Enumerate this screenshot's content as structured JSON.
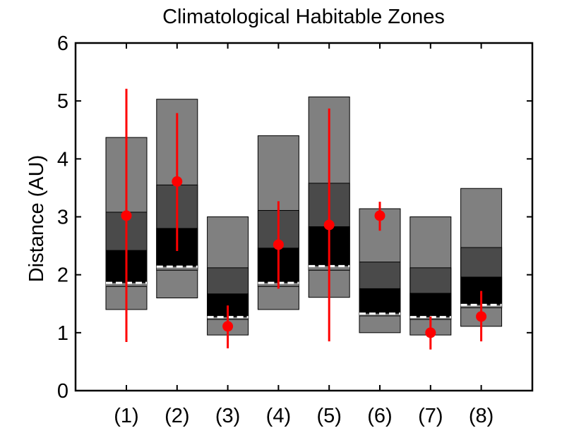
{
  "chart_data": {
    "type": "box",
    "title": "Climatological Habitable Zones",
    "xlabel": "",
    "ylabel": "Distance (AU)",
    "ylim": [
      0,
      6
    ],
    "yticks": [
      "0",
      "1",
      "2",
      "3",
      "4",
      "5",
      "6"
    ],
    "categories": [
      "(1)",
      "(2)",
      "(3)",
      "(4)",
      "(5)",
      "(6)",
      "(7)",
      "(8)"
    ],
    "grid": false,
    "legend": "none",
    "colors": {
      "outer_zone": "#808080",
      "middle_zone": "#4a4a4a",
      "inner_zone": "#000000",
      "dashed_line": "#ffffff",
      "marker": "#ff0000",
      "errorbar": "#ff0000"
    },
    "zones": [
      {
        "outer_low": 1.4,
        "inner_low": 1.8,
        "dashed": 1.86,
        "inner_high": 2.42,
        "middle_high": 3.08,
        "outer_high": 4.37
      },
      {
        "outer_low": 1.6,
        "inner_low": 2.08,
        "dashed": 2.14,
        "inner_high": 2.8,
        "middle_high": 3.55,
        "outer_high": 5.03
      },
      {
        "outer_low": 0.96,
        "inner_low": 1.23,
        "dashed": 1.27,
        "inner_high": 1.67,
        "middle_high": 2.12,
        "outer_high": 3.0
      },
      {
        "outer_low": 1.4,
        "inner_low": 1.8,
        "dashed": 1.86,
        "inner_high": 2.46,
        "middle_high": 3.11,
        "outer_high": 4.4
      },
      {
        "outer_low": 1.61,
        "inner_low": 2.08,
        "dashed": 2.15,
        "inner_high": 2.83,
        "middle_high": 3.58,
        "outer_high": 5.07
      },
      {
        "outer_low": 1.0,
        "inner_low": 1.29,
        "dashed": 1.33,
        "inner_high": 1.76,
        "middle_high": 2.22,
        "outer_high": 3.14
      },
      {
        "outer_low": 0.96,
        "inner_low": 1.23,
        "dashed": 1.27,
        "inner_high": 1.68,
        "middle_high": 2.12,
        "outer_high": 3.0
      },
      {
        "outer_low": 1.11,
        "inner_low": 1.43,
        "dashed": 1.48,
        "inner_high": 1.96,
        "middle_high": 2.47,
        "outer_high": 3.49
      }
    ],
    "points": [
      {
        "y": 3.02,
        "err_low": 0.84,
        "err_high": 5.21
      },
      {
        "y": 3.61,
        "err_low": 2.41,
        "err_high": 4.79
      },
      {
        "y": 1.11,
        "err_low": 0.73,
        "err_high": 1.47
      },
      {
        "y": 2.52,
        "err_low": 1.76,
        "err_high": 3.27
      },
      {
        "y": 2.86,
        "err_low": 0.85,
        "err_high": 4.87
      },
      {
        "y": 3.02,
        "err_low": 2.76,
        "err_high": 3.26
      },
      {
        "y": 1.0,
        "err_low": 0.71,
        "err_high": 1.28
      },
      {
        "y": 1.28,
        "err_low": 0.85,
        "err_high": 1.72
      }
    ]
  }
}
